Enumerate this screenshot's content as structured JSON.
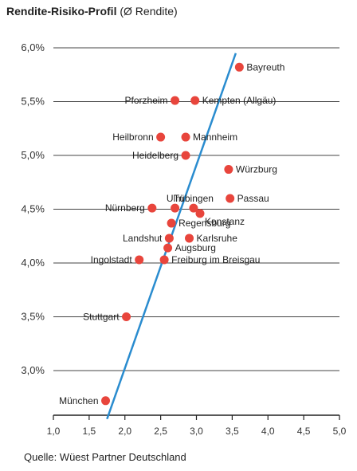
{
  "title": "Rendite-Risiko-Profil",
  "subtitle": "(Ø Rendite)",
  "source": "Quelle: Wüest Partner Deutschland",
  "chart_data": {
    "type": "scatter",
    "title": "Rendite-Risiko-Profil",
    "subtitle": "(Ø Rendite)",
    "xlim": [
      1.0,
      5.0
    ],
    "ylim": [
      2.5,
      6.0
    ],
    "x_ticks": [
      "1,0",
      "1,5",
      "2,0",
      "2,5",
      "3,0",
      "3,5",
      "4,0",
      "4,5",
      "5,0"
    ],
    "x_tick_values": [
      1.0,
      1.5,
      2.0,
      2.5,
      3.0,
      3.5,
      4.0,
      4.5,
      5.0
    ],
    "y_ticks": [
      "6,0%",
      "5,5%",
      "5,0%",
      "4,5%",
      "4,0%",
      "3,5%",
      "3,0%"
    ],
    "y_tick_values": [
      6.0,
      5.5,
      5.0,
      4.5,
      4.0,
      3.5,
      3.0
    ],
    "grid": "horizontal",
    "marker_color": "#e8453c",
    "line_color": "#2a8ccf",
    "trend_line": {
      "from": [
        1.75,
        2.55
      ],
      "to": [
        3.55,
        5.95
      ]
    },
    "points": [
      {
        "name": "Bayreuth",
        "x": 3.6,
        "y": 5.82,
        "label_pos": "right"
      },
      {
        "name": "Pforzheim",
        "x": 2.7,
        "y": 5.51,
        "label_pos": "left"
      },
      {
        "name": "Kempten (Allgäu)",
        "x": 2.98,
        "y": 5.51,
        "label_pos": "right"
      },
      {
        "name": "Heilbronn",
        "x": 2.5,
        "y": 5.17,
        "label_pos": "left"
      },
      {
        "name": "Mannheim",
        "x": 2.85,
        "y": 5.17,
        "label_pos": "right"
      },
      {
        "name": "Heidelberg",
        "x": 2.85,
        "y": 5.0,
        "label_pos": "left"
      },
      {
        "name": "Würzburg",
        "x": 3.45,
        "y": 4.87,
        "label_pos": "right"
      },
      {
        "name": "Nürnberg",
        "x": 2.38,
        "y": 4.51,
        "label_pos": "left"
      },
      {
        "name": "Ulm",
        "x": 2.7,
        "y": 4.51,
        "label_pos": "above"
      },
      {
        "name": "Tübingen",
        "x": 2.96,
        "y": 4.51,
        "label_pos": "above"
      },
      {
        "name": "Passau",
        "x": 3.47,
        "y": 4.6,
        "label_pos": "right"
      },
      {
        "name": "Konstanz",
        "x": 3.05,
        "y": 4.46,
        "label_pos": "below-right"
      },
      {
        "name": "Regensburg",
        "x": 2.65,
        "y": 4.37,
        "label_pos": "right"
      },
      {
        "name": "Landshut",
        "x": 2.62,
        "y": 4.23,
        "label_pos": "left"
      },
      {
        "name": "Karlsruhe",
        "x": 2.9,
        "y": 4.23,
        "label_pos": "right"
      },
      {
        "name": "Augsburg",
        "x": 2.6,
        "y": 4.14,
        "label_pos": "right"
      },
      {
        "name": "Ingolstadt",
        "x": 2.2,
        "y": 4.03,
        "label_pos": "left"
      },
      {
        "name": "Freiburg im Breisgau",
        "x": 2.55,
        "y": 4.03,
        "label_pos": "right"
      },
      {
        "name": "Stuttgart",
        "x": 2.02,
        "y": 3.5,
        "label_pos": "left"
      },
      {
        "name": "München",
        "x": 1.73,
        "y": 2.72,
        "label_pos": "left"
      }
    ]
  }
}
